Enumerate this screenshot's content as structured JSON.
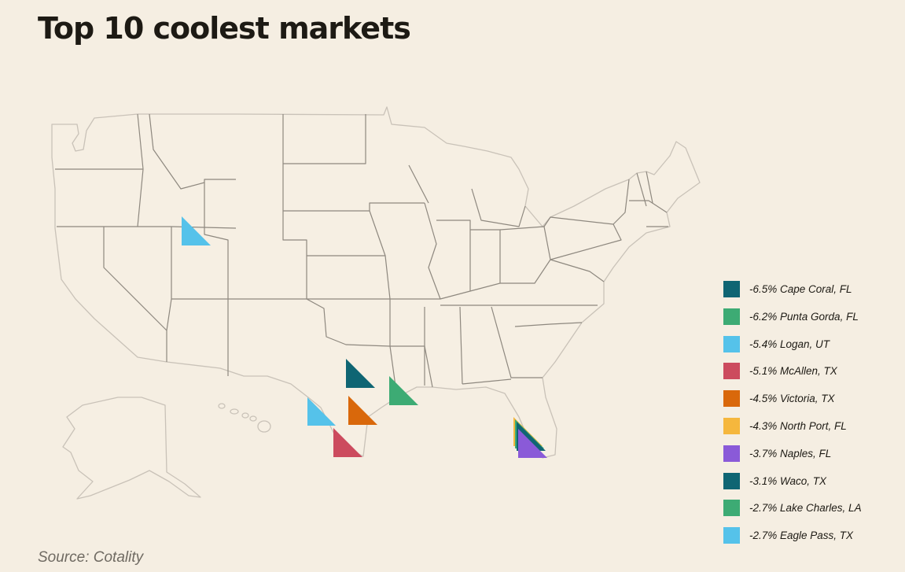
{
  "title": "Top 10 coolest markets",
  "source": "Source: Cotality",
  "legend": [
    {
      "label": "-6.5% Cape Coral, FL",
      "color": "#0f6573"
    },
    {
      "label": "-6.2% Punta Gorda, FL",
      "color": "#3dab74"
    },
    {
      "label": "-5.4% Logan, UT",
      "color": "#55c2ea"
    },
    {
      "label": "-5.1% McAllen, TX",
      "color": "#cc4b5e"
    },
    {
      "label": "-4.5% Victoria, TX",
      "color": "#d9680b"
    },
    {
      "label": "-4.3% North Port, FL",
      "color": "#f5b73d"
    },
    {
      "label": "-3.7% Naples, FL",
      "color": "#8a5ad8"
    },
    {
      "label": "-3.1% Waco, TX",
      "color": "#0f6573"
    },
    {
      "label": "-2.7% Lake Charles, LA",
      "color": "#3dab74"
    },
    {
      "label": "-2.7% Eagle Pass, TX",
      "color": "#55c2ea"
    }
  ]
}
